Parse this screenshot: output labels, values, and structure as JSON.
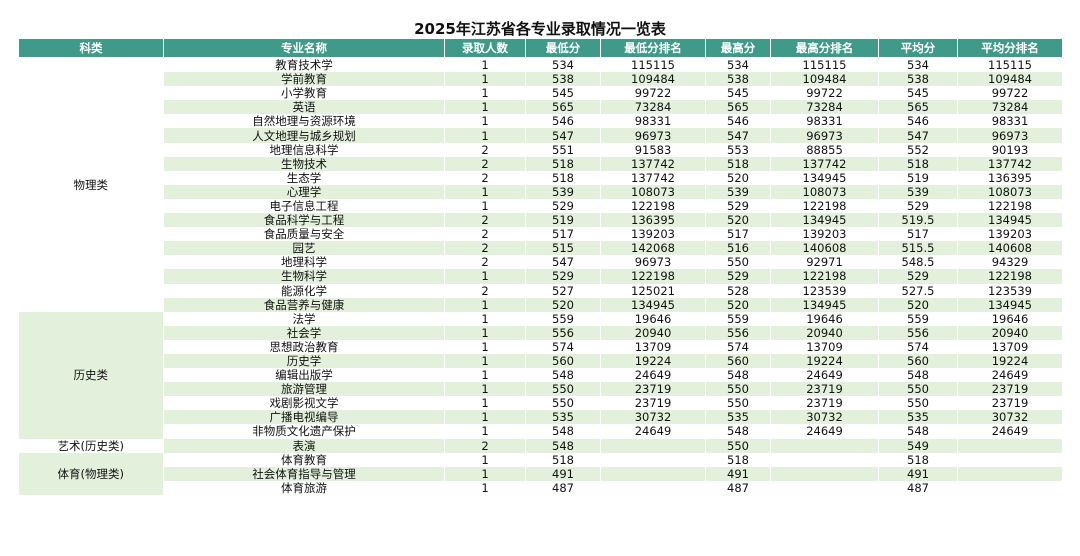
{
  "title": "2025年江苏省各专业录取情况一览表",
  "table": {
    "header": [
      "科类",
      "专业名称",
      "录取人数",
      "最低分",
      "最低分排名",
      "最高分",
      "最高分排名",
      "平均分",
      "平均分排名"
    ],
    "groups": [
      {
        "category": "物理类",
        "rows": [
          [
            "教育技术学",
            1,
            534,
            115115,
            534,
            115115,
            534,
            115115
          ],
          [
            "学前教育",
            1,
            538,
            109484,
            538,
            109484,
            538,
            109484
          ],
          [
            "小学教育",
            1,
            545,
            99722,
            545,
            99722,
            545,
            99722
          ],
          [
            "英语",
            1,
            565,
            73284,
            565,
            73284,
            565,
            73284
          ],
          [
            "自然地理与资源环境",
            1,
            546,
            98331,
            546,
            98331,
            546,
            98331
          ],
          [
            "人文地理与城乡规划",
            1,
            547,
            96973,
            547,
            96973,
            547,
            96973
          ],
          [
            "地理信息科学",
            2,
            551,
            91583,
            553,
            88855,
            552,
            90193
          ],
          [
            "生物技术",
            2,
            518,
            137742,
            518,
            137742,
            518,
            137742
          ],
          [
            "生态学",
            2,
            518,
            137742,
            520,
            134945,
            519,
            136395
          ],
          [
            "心理学",
            1,
            539,
            108073,
            539,
            108073,
            539,
            108073
          ],
          [
            "电子信息工程",
            1,
            529,
            122198,
            529,
            122198,
            529,
            122198
          ],
          [
            "食品科学与工程",
            2,
            519,
            136395,
            520,
            134945,
            519.5,
            134945
          ],
          [
            "食品质量与安全",
            2,
            517,
            139203,
            517,
            139203,
            517,
            139203
          ],
          [
            "园艺",
            2,
            515,
            142068,
            516,
            140608,
            515.5,
            140608
          ],
          [
            "地理科学",
            2,
            547,
            96973,
            550,
            92971,
            548.5,
            94329
          ],
          [
            "生物科学",
            1,
            529,
            122198,
            529,
            122198,
            529,
            122198
          ],
          [
            "能源化学",
            2,
            527,
            125021,
            528,
            123539,
            527.5,
            123539
          ],
          [
            "食品营养与健康",
            1,
            520,
            134945,
            520,
            134945,
            520,
            134945
          ]
        ]
      },
      {
        "category": "历史类",
        "rows": [
          [
            "法学",
            1,
            559,
            19646,
            559,
            19646,
            559,
            19646
          ],
          [
            "社会学",
            1,
            556,
            20940,
            556,
            20940,
            556,
            20940
          ],
          [
            "思想政治教育",
            1,
            574,
            13709,
            574,
            13709,
            574,
            13709
          ],
          [
            "历史学",
            1,
            560,
            19224,
            560,
            19224,
            560,
            19224
          ],
          [
            "编辑出版学",
            1,
            548,
            24649,
            548,
            24649,
            548,
            24649
          ],
          [
            "旅游管理",
            1,
            550,
            23719,
            550,
            23719,
            550,
            23719
          ],
          [
            "戏剧影视文学",
            1,
            550,
            23719,
            550,
            23719,
            550,
            23719
          ],
          [
            "广播电视编导",
            1,
            535,
            30732,
            535,
            30732,
            535,
            30732
          ],
          [
            "非物质文化遗产保护",
            1,
            548,
            24649,
            548,
            24649,
            548,
            24649
          ]
        ]
      },
      {
        "category": "艺术(历史类)",
        "rows": [
          [
            "表演",
            2,
            548,
            null,
            550,
            null,
            549,
            null
          ]
        ]
      },
      {
        "category": "体育(物理类)",
        "rows": [
          [
            "体育教育",
            1,
            518,
            null,
            518,
            null,
            518,
            null
          ],
          [
            "社会体育指导与管理",
            1,
            491,
            null,
            491,
            null,
            491,
            null
          ],
          [
            "体育旅游",
            1,
            487,
            null,
            487,
            null,
            487,
            null
          ]
        ]
      }
    ]
  }
}
